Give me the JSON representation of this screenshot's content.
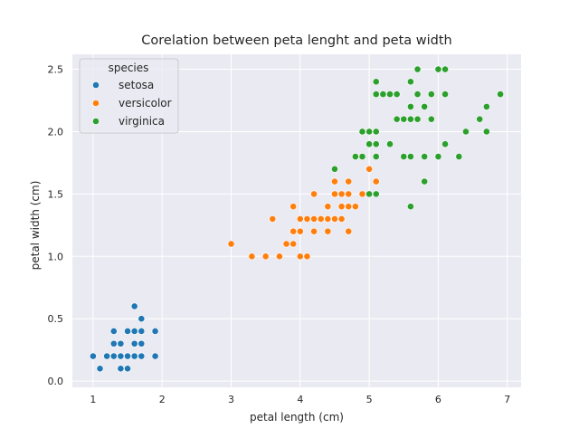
{
  "chart_data": {
    "type": "scatter",
    "title": "Corelation between peta lenght and peta width",
    "xlabel": "petal length (cm)",
    "ylabel": "petal width (cm)",
    "xlim": [
      0.7,
      7.2
    ],
    "ylim": [
      -0.05,
      2.62
    ],
    "xticks": [
      1,
      2,
      3,
      4,
      5,
      6,
      7
    ],
    "yticks": [
      0.0,
      0.5,
      1.0,
      1.5,
      2.0,
      2.5
    ],
    "xtick_labels": [
      "1",
      "2",
      "3",
      "4",
      "5",
      "6",
      "7"
    ],
    "ytick_labels": [
      "0.0",
      "0.5",
      "1.0",
      "1.5",
      "2.0",
      "2.5"
    ],
    "grid": true,
    "background": "#eaeaf2",
    "legend": {
      "title": "species",
      "position": "top-left"
    },
    "series": [
      {
        "name": "setosa",
        "color": "#1f77b4",
        "points": [
          [
            1.0,
            0.2
          ],
          [
            1.1,
            0.1
          ],
          [
            1.2,
            0.2
          ],
          [
            1.3,
            0.2
          ],
          [
            1.3,
            0.3
          ],
          [
            1.3,
            0.4
          ],
          [
            1.4,
            0.1
          ],
          [
            1.4,
            0.2
          ],
          [
            1.4,
            0.3
          ],
          [
            1.5,
            0.1
          ],
          [
            1.5,
            0.2
          ],
          [
            1.5,
            0.4
          ],
          [
            1.6,
            0.2
          ],
          [
            1.6,
            0.4
          ],
          [
            1.6,
            0.6
          ],
          [
            1.6,
            0.3
          ],
          [
            1.7,
            0.2
          ],
          [
            1.7,
            0.3
          ],
          [
            1.7,
            0.5
          ],
          [
            1.7,
            0.4
          ],
          [
            1.9,
            0.2
          ],
          [
            1.9,
            0.4
          ]
        ]
      },
      {
        "name": "versicolor",
        "color": "#ff7f0e",
        "points": [
          [
            3.0,
            1.1
          ],
          [
            3.3,
            1.0
          ],
          [
            3.5,
            1.0
          ],
          [
            3.6,
            1.3
          ],
          [
            3.7,
            1.0
          ],
          [
            3.8,
            1.1
          ],
          [
            3.9,
            1.1
          ],
          [
            3.9,
            1.2
          ],
          [
            3.9,
            1.4
          ],
          [
            4.0,
            1.0
          ],
          [
            4.0,
            1.2
          ],
          [
            4.0,
            1.3
          ],
          [
            4.1,
            1.0
          ],
          [
            4.1,
            1.3
          ],
          [
            4.2,
            1.2
          ],
          [
            4.2,
            1.3
          ],
          [
            4.2,
            1.5
          ],
          [
            4.3,
            1.3
          ],
          [
            4.4,
            1.2
          ],
          [
            4.4,
            1.3
          ],
          [
            4.4,
            1.4
          ],
          [
            4.5,
            1.3
          ],
          [
            4.5,
            1.5
          ],
          [
            4.5,
            1.6
          ],
          [
            4.6,
            1.3
          ],
          [
            4.6,
            1.4
          ],
          [
            4.6,
            1.5
          ],
          [
            4.7,
            1.2
          ],
          [
            4.7,
            1.4
          ],
          [
            4.7,
            1.5
          ],
          [
            4.7,
            1.6
          ],
          [
            4.8,
            1.4
          ],
          [
            4.8,
            1.8
          ],
          [
            4.9,
            1.5
          ],
          [
            5.0,
            1.7
          ],
          [
            5.1,
            1.6
          ]
        ]
      },
      {
        "name": "virginica",
        "color": "#2ca02c",
        "points": [
          [
            4.5,
            1.7
          ],
          [
            4.8,
            1.8
          ],
          [
            4.9,
            1.8
          ],
          [
            4.9,
            2.0
          ],
          [
            5.0,
            1.5
          ],
          [
            5.0,
            1.9
          ],
          [
            5.0,
            2.0
          ],
          [
            5.1,
            1.5
          ],
          [
            5.1,
            1.8
          ],
          [
            5.1,
            1.9
          ],
          [
            5.1,
            2.0
          ],
          [
            5.1,
            2.3
          ],
          [
            5.1,
            2.4
          ],
          [
            5.2,
            2.3
          ],
          [
            5.3,
            1.9
          ],
          [
            5.3,
            2.3
          ],
          [
            5.4,
            2.1
          ],
          [
            5.4,
            2.3
          ],
          [
            5.5,
            1.8
          ],
          [
            5.5,
            2.1
          ],
          [
            5.6,
            1.4
          ],
          [
            5.6,
            1.8
          ],
          [
            5.6,
            2.1
          ],
          [
            5.6,
            2.2
          ],
          [
            5.6,
            2.4
          ],
          [
            5.7,
            2.1
          ],
          [
            5.7,
            2.3
          ],
          [
            5.7,
            2.5
          ],
          [
            5.8,
            1.6
          ],
          [
            5.8,
            1.8
          ],
          [
            5.8,
            2.2
          ],
          [
            5.9,
            2.1
          ],
          [
            5.9,
            2.3
          ],
          [
            6.0,
            1.8
          ],
          [
            6.0,
            2.5
          ],
          [
            6.1,
            1.9
          ],
          [
            6.1,
            2.3
          ],
          [
            6.1,
            2.5
          ],
          [
            6.3,
            1.8
          ],
          [
            6.4,
            2.0
          ],
          [
            6.6,
            2.1
          ],
          [
            6.7,
            2.0
          ],
          [
            6.7,
            2.2
          ],
          [
            6.9,
            2.3
          ]
        ]
      }
    ]
  }
}
